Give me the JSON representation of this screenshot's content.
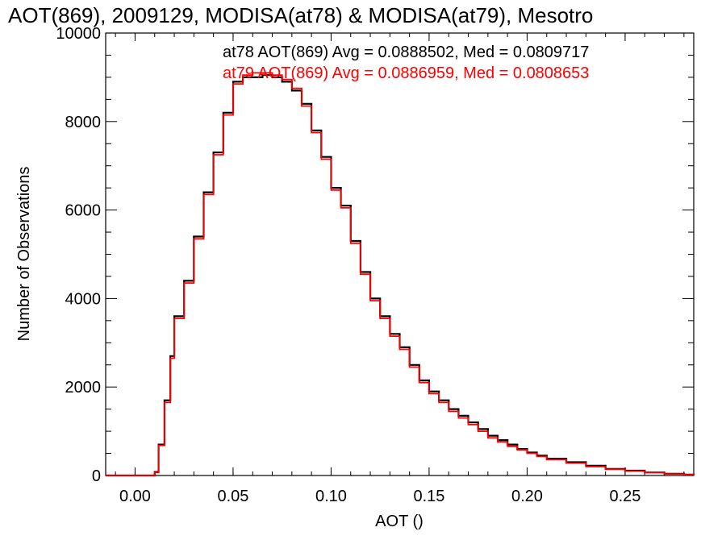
{
  "chart_data": {
    "type": "line",
    "title": "AOT(869), 2009129, MODISA(at78) & MODISA(at79), Mesotro",
    "xlabel": "AOT ()",
    "ylabel": "Number of Observations",
    "xlim": [
      -0.015,
      0.285
    ],
    "ylim": [
      0,
      10000
    ],
    "x_ticks": [
      "0.00",
      "0.05",
      "0.10",
      "0.15",
      "0.20",
      "0.25"
    ],
    "y_ticks": [
      "0",
      "2000",
      "4000",
      "6000",
      "8000",
      "10000"
    ],
    "grid": false,
    "legend_placement": "top-right",
    "annotations": [
      {
        "text": "at78 AOT(869) Avg = 0.0888502, Med = 0.0809717",
        "color": "#000000"
      },
      {
        "text": "at79 AOT(869) Avg = 0.0886959, Med = 0.0808653",
        "color": "#ff0000"
      }
    ],
    "series": [
      {
        "color": "#000000",
        "x": [
          -0.015,
          0.0,
          0.005,
          0.008,
          0.01,
          0.012,
          0.015,
          0.018,
          0.02,
          0.025,
          0.03,
          0.035,
          0.04,
          0.045,
          0.05,
          0.055,
          0.06,
          0.065,
          0.07,
          0.075,
          0.08,
          0.085,
          0.09,
          0.095,
          0.1,
          0.105,
          0.11,
          0.115,
          0.12,
          0.125,
          0.13,
          0.135,
          0.14,
          0.145,
          0.15,
          0.155,
          0.16,
          0.165,
          0.17,
          0.175,
          0.18,
          0.185,
          0.19,
          0.195,
          0.2,
          0.205,
          0.21,
          0.22,
          0.23,
          0.24,
          0.25,
          0.26,
          0.27,
          0.28,
          0.285
        ],
        "y": [
          0,
          0,
          0,
          0,
          80,
          700,
          1700,
          2700,
          3600,
          4400,
          5400,
          6400,
          7300,
          8200,
          8900,
          9000,
          9000,
          9050,
          9000,
          8900,
          8700,
          8400,
          7800,
          7200,
          6500,
          6100,
          5300,
          4600,
          4000,
          3600,
          3200,
          2900,
          2500,
          2150,
          1900,
          1700,
          1500,
          1350,
          1200,
          1050,
          900,
          800,
          700,
          600,
          520,
          450,
          380,
          300,
          220,
          150,
          110,
          70,
          40,
          20,
          10
        ]
      },
      {
        "color": "#ff0000",
        "x": [
          -0.015,
          0.0,
          0.005,
          0.008,
          0.01,
          0.012,
          0.015,
          0.018,
          0.02,
          0.025,
          0.03,
          0.035,
          0.04,
          0.045,
          0.05,
          0.055,
          0.06,
          0.065,
          0.07,
          0.075,
          0.08,
          0.085,
          0.09,
          0.095,
          0.1,
          0.105,
          0.11,
          0.115,
          0.12,
          0.125,
          0.13,
          0.135,
          0.14,
          0.145,
          0.15,
          0.155,
          0.16,
          0.165,
          0.17,
          0.175,
          0.18,
          0.185,
          0.19,
          0.195,
          0.2,
          0.205,
          0.21,
          0.22,
          0.23,
          0.24,
          0.25,
          0.26,
          0.27,
          0.28,
          0.285
        ],
        "y": [
          0,
          0,
          0,
          0,
          70,
          680,
          1650,
          2650,
          3550,
          4350,
          5350,
          6350,
          7250,
          8150,
          8850,
          9050,
          9100,
          9100,
          9050,
          8950,
          8750,
          8350,
          7750,
          7150,
          6450,
          6050,
          5250,
          4550,
          3950,
          3550,
          3150,
          2850,
          2450,
          2100,
          1850,
          1650,
          1450,
          1300,
          1150,
          1000,
          850,
          760,
          660,
          580,
          500,
          430,
          360,
          280,
          200,
          140,
          100,
          65,
          35,
          18,
          8
        ]
      }
    ]
  }
}
